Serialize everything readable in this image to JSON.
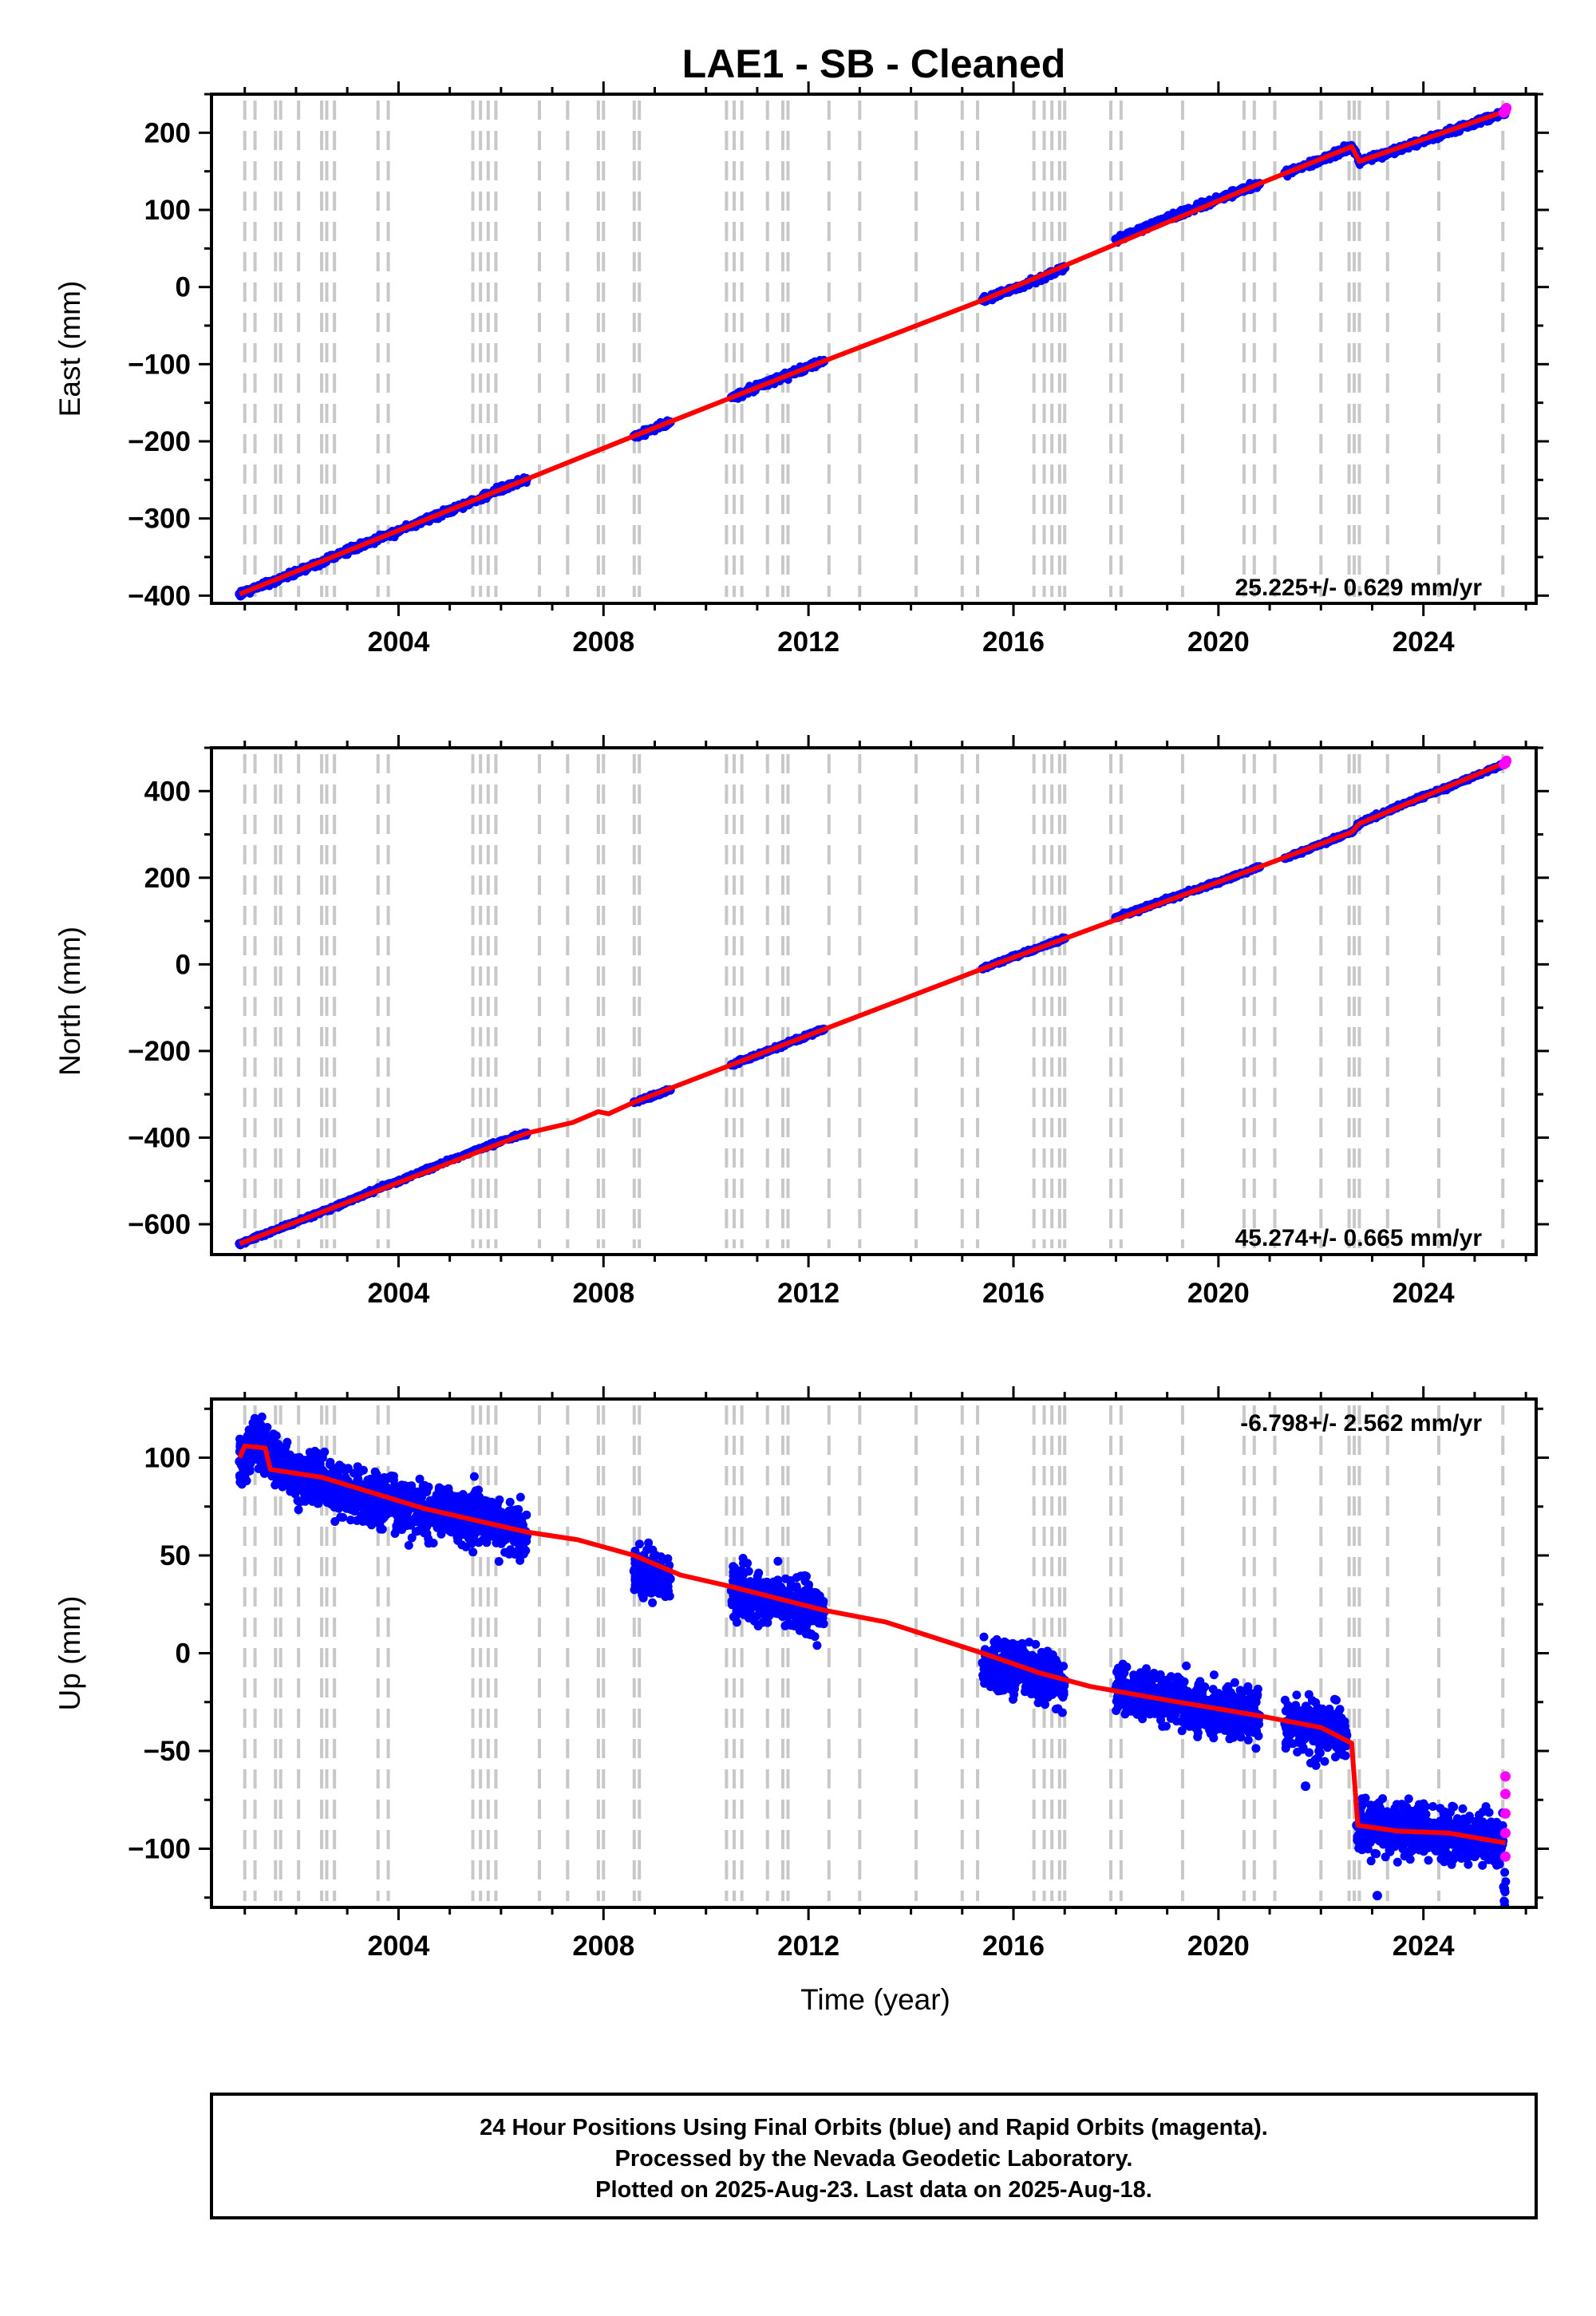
{
  "title": "LAE1  - SB - Cleaned",
  "colors": {
    "final_orbits": "#0000ff",
    "rapid_orbits": "#ff00ff",
    "model_fit": "#ff0000",
    "event_lines": "#c8c8c8",
    "frame": "#000000"
  },
  "xlabel": "Time (year)",
  "footer": {
    "line1": "24 Hour Positions Using Final Orbits (blue) and Rapid Orbits (magenta).",
    "line2": "Processed by the Nevada Geodetic Laboratory.",
    "line3": "Plotted on 2025-Aug-23. Last data on 2025-Aug-18."
  },
  "chart_data": [
    {
      "type": "scatter",
      "component": "east",
      "ylabel": "East (mm)",
      "rate_label": "25.225+/- 0.629 mm/yr",
      "xlim": [
        2000.35,
        2026.2
      ],
      "ylim": [
        -410,
        250
      ],
      "x_ticks": [
        2004,
        2008,
        2012,
        2016,
        2020,
        2024
      ],
      "y_ticks": [
        -400,
        -300,
        -200,
        -100,
        0,
        100,
        200
      ],
      "legend": "none",
      "grid": false,
      "data_segments": [
        [
          2000.9,
          2006.5
        ],
        [
          2008.6,
          2009.3
        ],
        [
          2010.5,
          2012.3
        ],
        [
          2015.4,
          2017.0
        ],
        [
          2018.0,
          2020.8
        ],
        [
          2021.3,
          2025.62
        ]
      ],
      "series": [
        {
          "name": "",
          "kind": "scatter",
          "color": "#0000ff",
          "points": [
            [
              2000.9,
              -398
            ],
            [
              2002.0,
              -370
            ],
            [
              2003.0,
              -342
            ],
            [
              2004.0,
              -316
            ],
            [
              2005.0,
              -290
            ],
            [
              2006.0,
              -262
            ],
            [
              2006.5,
              -249
            ],
            [
              2008.6,
              -193
            ],
            [
              2009.3,
              -175
            ],
            [
              2010.5,
              -143
            ],
            [
              2011.0,
              -129
            ],
            [
              2012.3,
              -96
            ],
            [
              2015.4,
              -17
            ],
            [
              2016.0,
              -3
            ],
            [
              2017.0,
              25
            ],
            [
              2018.0,
              62
            ],
            [
              2019.0,
              89
            ],
            [
              2020.0,
              115
            ],
            [
              2020.8,
              134
            ],
            [
              2021.3,
              148
            ],
            [
              2022.0,
              165
            ],
            [
              2022.6,
              182
            ],
            [
              2022.75,
              163
            ],
            [
              2023.5,
              178
            ],
            [
              2024.5,
              201
            ],
            [
              2025.55,
              226
            ]
          ]
        },
        {
          "name": "",
          "kind": "scatter",
          "color": "#ff00ff",
          "points": [
            [
              2025.57,
              226
            ],
            [
              2025.6,
              228
            ],
            [
              2025.62,
              232
            ]
          ]
        },
        {
          "name": "",
          "kind": "line",
          "color": "#ff0000",
          "points": [
            [
              2000.9,
              -398
            ],
            [
              2006.5,
              -249
            ],
            [
              2008.6,
              -193
            ],
            [
              2012.3,
              -96
            ],
            [
              2015.4,
              -17
            ],
            [
              2020.8,
              134
            ],
            [
              2022.6,
              182
            ],
            [
              2022.75,
              163
            ],
            [
              2025.6,
              228
            ]
          ]
        }
      ]
    },
    {
      "type": "scatter",
      "component": "north",
      "ylabel": "North (mm)",
      "rate_label": "45.274+/- 0.665 mm/yr",
      "xlim": [
        2000.35,
        2026.2
      ],
      "ylim": [
        -670,
        500
      ],
      "x_ticks": [
        2004,
        2008,
        2012,
        2016,
        2020,
        2024
      ],
      "y_ticks": [
        -600,
        -400,
        -200,
        0,
        200,
        400
      ],
      "legend": "none",
      "grid": false,
      "data_segments": [
        [
          2000.9,
          2006.5
        ],
        [
          2008.6,
          2009.3
        ],
        [
          2010.5,
          2012.3
        ],
        [
          2015.4,
          2017.0
        ],
        [
          2018.0,
          2020.8
        ],
        [
          2021.3,
          2025.62
        ]
      ],
      "series": [
        {
          "name": "",
          "kind": "scatter",
          "color": "#0000ff",
          "points": [
            [
              2000.9,
              -645
            ],
            [
              2002.0,
              -595
            ],
            [
              2003.0,
              -548
            ],
            [
              2004.0,
              -500
            ],
            [
              2005.0,
              -452
            ],
            [
              2006.0,
              -408
            ],
            [
              2006.5,
              -390
            ],
            [
              2008.6,
              -318
            ],
            [
              2009.3,
              -290
            ],
            [
              2010.5,
              -232
            ],
            [
              2012.3,
              -150
            ],
            [
              2015.4,
              -10
            ],
            [
              2016.0,
              18
            ],
            [
              2017.0,
              60
            ],
            [
              2018.0,
              108
            ],
            [
              2019.0,
              150
            ],
            [
              2020.0,
              190
            ],
            [
              2020.8,
              225
            ],
            [
              2021.3,
              245
            ],
            [
              2022.6,
              305
            ],
            [
              2022.75,
              325
            ],
            [
              2023.5,
              365
            ],
            [
              2024.5,
              410
            ],
            [
              2025.55,
              462
            ]
          ]
        },
        {
          "name": "",
          "kind": "scatter",
          "color": "#ff00ff",
          "points": [
            [
              2025.57,
              462
            ],
            [
              2025.6,
              466
            ],
            [
              2025.62,
              470
            ]
          ]
        },
        {
          "name": "",
          "kind": "line",
          "color": "#ff0000",
          "points": [
            [
              2000.9,
              -645
            ],
            [
              2006.5,
              -390
            ],
            [
              2007.4,
              -365
            ],
            [
              2007.9,
              -340
            ],
            [
              2008.1,
              -345
            ],
            [
              2008.6,
              -318
            ],
            [
              2012.3,
              -150
            ],
            [
              2015.4,
              -10
            ],
            [
              2020.8,
              225
            ],
            [
              2022.6,
              305
            ],
            [
              2022.75,
              325
            ],
            [
              2025.6,
              466
            ]
          ]
        }
      ]
    },
    {
      "type": "scatter",
      "component": "up",
      "ylabel": "Up (mm)",
      "rate_label": "-6.798+/- 2.562 mm/yr",
      "xlim": [
        2000.35,
        2026.2
      ],
      "ylim": [
        -130,
        130
      ],
      "x_ticks": [
        2004,
        2008,
        2012,
        2016,
        2020,
        2024
      ],
      "y_ticks": [
        -100,
        -50,
        0,
        50,
        100
      ],
      "legend": "none",
      "grid": false,
      "data_segments": [
        [
          2000.9,
          2006.5
        ],
        [
          2008.6,
          2009.3
        ],
        [
          2010.5,
          2012.3
        ],
        [
          2015.4,
          2017.0
        ],
        [
          2018.0,
          2020.8
        ],
        [
          2021.3,
          2022.5
        ],
        [
          2022.7,
          2025.62
        ]
      ],
      "series": [
        {
          "name": "",
          "kind": "scatter",
          "color": "#0000ff",
          "points": [
            [
              2000.9,
              98
            ],
            [
              2001.2,
              108
            ],
            [
              2002.0,
              90
            ],
            [
              2003.0,
              83
            ],
            [
              2004.0,
              76
            ],
            [
              2005.0,
              71
            ],
            [
              2006.0,
              66
            ],
            [
              2006.5,
              60
            ],
            [
              2008.6,
              42
            ],
            [
              2009.3,
              38
            ],
            [
              2010.5,
              32
            ],
            [
              2011.5,
              26
            ],
            [
              2012.3,
              21
            ],
            [
              2015.4,
              -5
            ],
            [
              2016.0,
              -8
            ],
            [
              2017.0,
              -14
            ],
            [
              2018.0,
              -18
            ],
            [
              2019.0,
              -24
            ],
            [
              2020.0,
              -29
            ],
            [
              2020.8,
              -32
            ],
            [
              2021.3,
              -36
            ],
            [
              2022.5,
              -42
            ],
            [
              2022.7,
              -88
            ],
            [
              2023.5,
              -90
            ],
            [
              2024.5,
              -92
            ],
            [
              2025.55,
              -96
            ],
            [
              2021.7,
              -68
            ],
            [
              2023.1,
              -124
            ]
          ]
        },
        {
          "name": "",
          "kind": "scatter",
          "color": "#ff00ff",
          "points": [
            [
              2025.6,
              -63
            ],
            [
              2025.6,
              -72
            ],
            [
              2025.6,
              -82
            ],
            [
              2025.6,
              -92
            ],
            [
              2025.6,
              -104
            ]
          ]
        },
        {
          "name": "",
          "kind": "line",
          "color": "#ff0000",
          "points": [
            [
              2000.9,
              100
            ],
            [
              2001.0,
              106
            ],
            [
              2001.4,
              105
            ],
            [
              2001.5,
              94
            ],
            [
              2002.5,
              90
            ],
            [
              2003.5,
              82
            ],
            [
              2004.5,
              74
            ],
            [
              2005.5,
              68
            ],
            [
              2006.5,
              62
            ],
            [
              2007.5,
              58
            ],
            [
              2008.6,
              50
            ],
            [
              2009.5,
              40
            ],
            [
              2010.5,
              34
            ],
            [
              2012.3,
              22
            ],
            [
              2013.5,
              16
            ],
            [
              2015.4,
              0
            ],
            [
              2016.5,
              -10
            ],
            [
              2017.5,
              -17
            ],
            [
              2019.0,
              -24
            ],
            [
              2020.8,
              -32
            ],
            [
              2022.0,
              -38
            ],
            [
              2022.6,
              -46
            ],
            [
              2022.72,
              -88
            ],
            [
              2023.5,
              -91
            ],
            [
              2024.5,
              -92
            ],
            [
              2025.6,
              -97
            ]
          ]
        }
      ]
    }
  ]
}
